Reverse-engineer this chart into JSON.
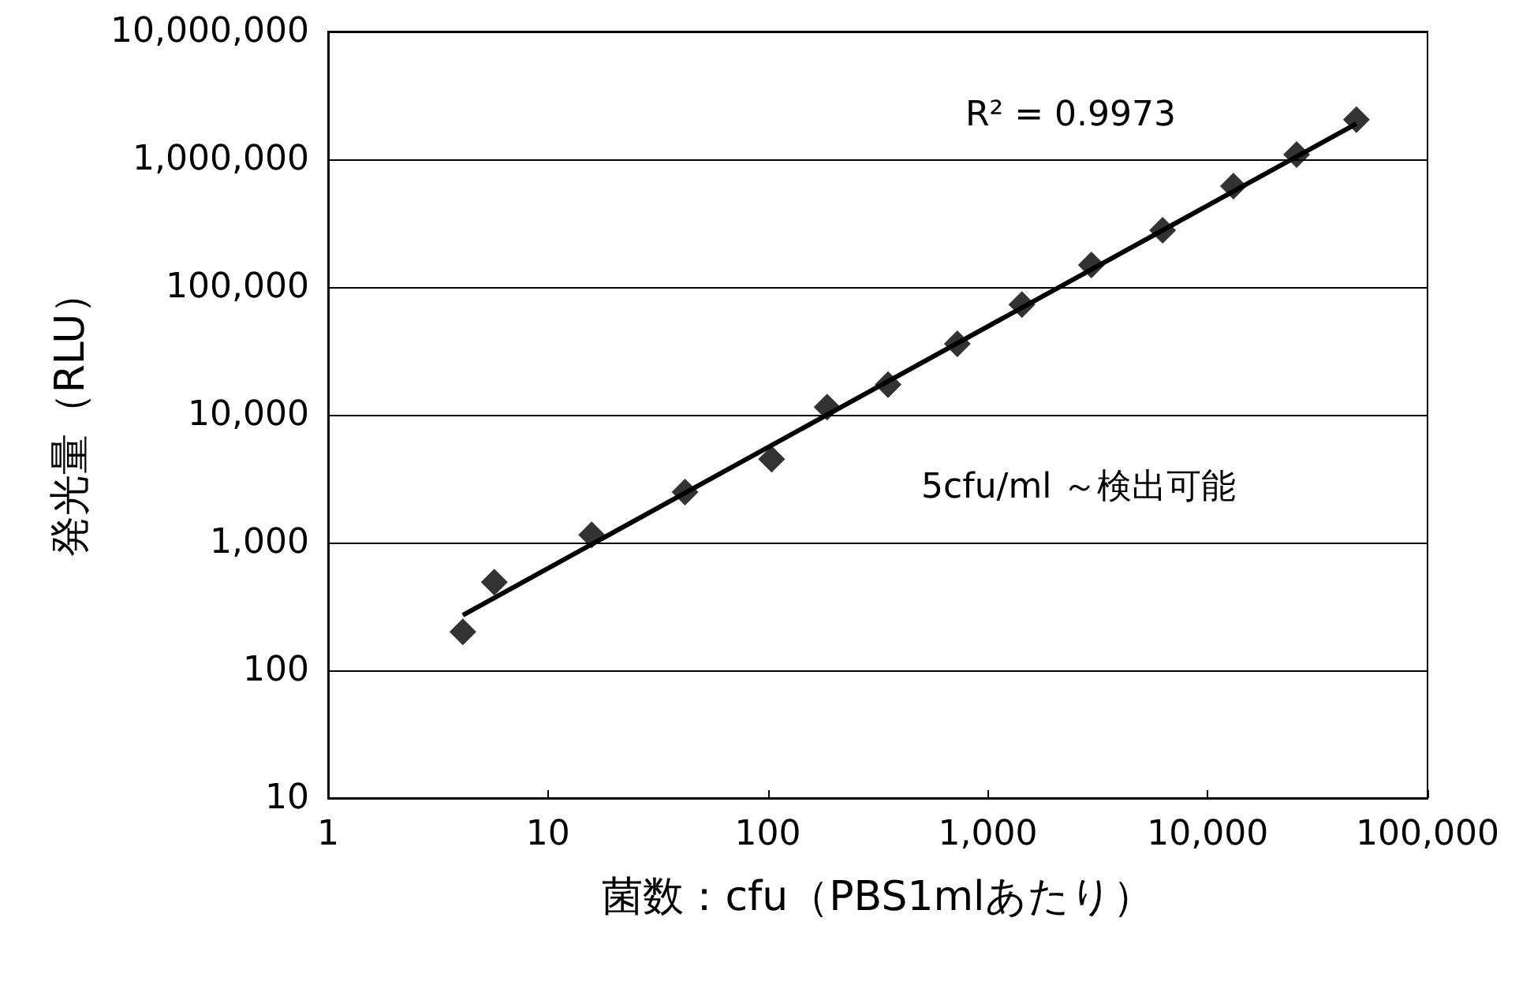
{
  "chart_data": {
    "type": "scatter",
    "xlabel": "菌数：cfu（PBS1mlあたり）",
    "ylabel": "発光量（RLU）",
    "log": "xy",
    "grid": "y",
    "marker": "diamond",
    "xlim": [
      1,
      100000
    ],
    "xticks": [
      1,
      10,
      100,
      {
        "value": 1000,
        "label": "1,000"
      },
      {
        "value": 10000,
        "label": "10,000"
      },
      {
        "value": 100000,
        "label": "100,000"
      }
    ],
    "ylim": [
      10,
      10000000
    ],
    "yticks": [
      10,
      100,
      {
        "value": 1000,
        "label": "1,000"
      },
      {
        "value": 10000,
        "label": "10,000"
      },
      {
        "value": 100000,
        "label": "100,000"
      },
      {
        "value": 1000000,
        "label": "1,000,000"
      },
      {
        "value": 10000000,
        "label": "10,000,000"
      }
    ],
    "series": [
      {
        "color": "#000000",
        "x": [
          4.1,
          5.7,
          15.8,
          42,
          104,
          186,
          352,
          727,
          1430,
          2960,
          6240,
          13100,
          25400,
          47500
        ],
        "values": [
          200,
          490,
          1150,
          2480,
          4500,
          11500,
          17200,
          36000,
          73000,
          149000,
          278000,
          617000,
          1090000,
          2040000
        ]
      },
      {
        "type": "line",
        "marker": "none",
        "line_style": "solid",
        "color": "#000000",
        "x": [
          4.1,
          47500
        ],
        "values": [
          270,
          1900000
        ]
      }
    ],
    "annotations": [
      "R² = 0.9973",
      "5cfu/ml ～検出可能"
    ]
  }
}
